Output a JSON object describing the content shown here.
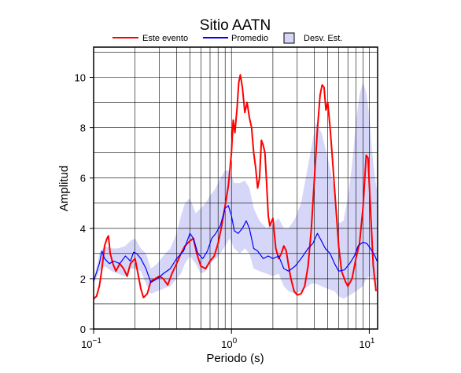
{
  "chart_data": {
    "type": "line",
    "title": "Sitio AATN",
    "xlabel": "Periodo (s)",
    "ylabel": "Amplitud",
    "xscale": "log",
    "xlim": [
      0.1,
      11.5
    ],
    "ylim": [
      0,
      11.2
    ],
    "grid": true,
    "legend_placement": "top",
    "x_ticks": [
      {
        "value": 0.1,
        "base": "10",
        "exp": "−1"
      },
      {
        "value": 1,
        "base": "10",
        "exp": "0"
      },
      {
        "value": 10,
        "base": "10",
        "exp": "1"
      }
    ],
    "y_ticks": [
      0,
      2,
      4,
      6,
      8,
      10
    ],
    "legend": [
      {
        "label": "Este evento",
        "color": "#ff0000",
        "kind": "line"
      },
      {
        "label": "Promedio",
        "color": "#0000ff",
        "kind": "line"
      },
      {
        "label": "Desv. Est.",
        "color": "#d6d6f8",
        "kind": "box"
      }
    ],
    "series": [
      {
        "name": "Este evento",
        "color": "#ff0000",
        "points": [
          [
            0.1,
            1.2
          ],
          [
            0.105,
            1.3
          ],
          [
            0.11,
            1.7
          ],
          [
            0.115,
            2.4
          ],
          [
            0.12,
            3.3
          ],
          [
            0.125,
            3.6
          ],
          [
            0.128,
            3.7
          ],
          [
            0.132,
            3.0
          ],
          [
            0.138,
            2.6
          ],
          [
            0.145,
            2.3
          ],
          [
            0.155,
            2.6
          ],
          [
            0.165,
            2.4
          ],
          [
            0.175,
            2.1
          ],
          [
            0.185,
            2.6
          ],
          [
            0.2,
            2.8
          ],
          [
            0.21,
            2.2
          ],
          [
            0.22,
            1.6
          ],
          [
            0.23,
            1.25
          ],
          [
            0.245,
            1.4
          ],
          [
            0.26,
            1.9
          ],
          [
            0.28,
            2.0
          ],
          [
            0.3,
            2.1
          ],
          [
            0.32,
            2.0
          ],
          [
            0.345,
            1.75
          ],
          [
            0.37,
            2.2
          ],
          [
            0.4,
            2.6
          ],
          [
            0.43,
            3.0
          ],
          [
            0.46,
            3.3
          ],
          [
            0.5,
            3.5
          ],
          [
            0.53,
            3.6
          ],
          [
            0.56,
            3.0
          ],
          [
            0.6,
            2.5
          ],
          [
            0.65,
            2.4
          ],
          [
            0.7,
            2.7
          ],
          [
            0.75,
            2.9
          ],
          [
            0.8,
            3.4
          ],
          [
            0.85,
            4.1
          ],
          [
            0.9,
            4.9
          ],
          [
            0.95,
            5.7
          ],
          [
            1.0,
            7.0
          ],
          [
            1.03,
            8.3
          ],
          [
            1.06,
            7.8
          ],
          [
            1.1,
            8.8
          ],
          [
            1.13,
            9.8
          ],
          [
            1.16,
            10.1
          ],
          [
            1.2,
            9.6
          ],
          [
            1.25,
            8.6
          ],
          [
            1.3,
            9.0
          ],
          [
            1.35,
            8.4
          ],
          [
            1.4,
            8.0
          ],
          [
            1.45,
            7.0
          ],
          [
            1.5,
            6.4
          ],
          [
            1.55,
            5.6
          ],
          [
            1.6,
            6.0
          ],
          [
            1.65,
            7.5
          ],
          [
            1.7,
            7.3
          ],
          [
            1.75,
            7.0
          ],
          [
            1.8,
            5.8
          ],
          [
            1.85,
            4.5
          ],
          [
            1.9,
            4.1
          ],
          [
            2.0,
            4.4
          ],
          [
            2.1,
            3.2
          ],
          [
            2.2,
            2.8
          ],
          [
            2.3,
            3.0
          ],
          [
            2.4,
            3.3
          ],
          [
            2.5,
            3.1
          ],
          [
            2.6,
            2.5
          ],
          [
            2.7,
            2.0
          ],
          [
            2.85,
            1.5
          ],
          [
            3.0,
            1.35
          ],
          [
            3.2,
            1.4
          ],
          [
            3.4,
            1.7
          ],
          [
            3.6,
            2.5
          ],
          [
            3.8,
            4.0
          ],
          [
            4.0,
            6.0
          ],
          [
            4.2,
            7.9
          ],
          [
            4.4,
            9.3
          ],
          [
            4.55,
            9.7
          ],
          [
            4.7,
            9.6
          ],
          [
            4.85,
            8.7
          ],
          [
            5.0,
            9.0
          ],
          [
            5.2,
            8.0
          ],
          [
            5.4,
            6.8
          ],
          [
            5.7,
            5.0
          ],
          [
            6.0,
            3.3
          ],
          [
            6.3,
            2.3
          ],
          [
            6.7,
            1.9
          ],
          [
            7.0,
            1.7
          ],
          [
            7.5,
            2.0
          ],
          [
            8.0,
            2.8
          ],
          [
            8.5,
            3.4
          ],
          [
            9.0,
            4.8
          ],
          [
            9.5,
            6.9
          ],
          [
            9.8,
            6.8
          ],
          [
            10.2,
            4.8
          ],
          [
            10.7,
            2.5
          ],
          [
            11.2,
            1.5
          ]
        ]
      },
      {
        "name": "Promedio",
        "color": "#0000ff",
        "points": [
          [
            0.1,
            1.9
          ],
          [
            0.11,
            2.6
          ],
          [
            0.115,
            3.1
          ],
          [
            0.12,
            2.8
          ],
          [
            0.13,
            2.6
          ],
          [
            0.14,
            2.7
          ],
          [
            0.155,
            2.6
          ],
          [
            0.17,
            2.9
          ],
          [
            0.185,
            2.7
          ],
          [
            0.195,
            3.05
          ],
          [
            0.205,
            3.0
          ],
          [
            0.22,
            2.8
          ],
          [
            0.24,
            2.4
          ],
          [
            0.26,
            1.85
          ],
          [
            0.29,
            2.0
          ],
          [
            0.32,
            2.2
          ],
          [
            0.36,
            2.4
          ],
          [
            0.4,
            2.8
          ],
          [
            0.45,
            3.1
          ],
          [
            0.5,
            3.8
          ],
          [
            0.53,
            3.6
          ],
          [
            0.57,
            3.0
          ],
          [
            0.62,
            2.8
          ],
          [
            0.67,
            3.1
          ],
          [
            0.72,
            3.6
          ],
          [
            0.77,
            3.8
          ],
          [
            0.83,
            4.1
          ],
          [
            0.9,
            4.8
          ],
          [
            0.95,
            4.9
          ],
          [
            1.0,
            4.5
          ],
          [
            1.05,
            3.9
          ],
          [
            1.12,
            3.8
          ],
          [
            1.2,
            4.0
          ],
          [
            1.28,
            4.3
          ],
          [
            1.35,
            4.0
          ],
          [
            1.45,
            3.2
          ],
          [
            1.55,
            3.1
          ],
          [
            1.7,
            2.8
          ],
          [
            1.85,
            2.9
          ],
          [
            2.0,
            2.8
          ],
          [
            2.2,
            2.9
          ],
          [
            2.4,
            2.4
          ],
          [
            2.6,
            2.3
          ],
          [
            2.9,
            2.5
          ],
          [
            3.2,
            2.8
          ],
          [
            3.6,
            3.2
          ],
          [
            3.9,
            3.4
          ],
          [
            4.2,
            3.8
          ],
          [
            4.5,
            3.5
          ],
          [
            4.8,
            3.2
          ],
          [
            5.2,
            3.0
          ],
          [
            5.6,
            2.6
          ],
          [
            6.0,
            2.3
          ],
          [
            6.6,
            2.35
          ],
          [
            7.2,
            2.6
          ],
          [
            7.8,
            2.9
          ],
          [
            8.3,
            3.3
          ],
          [
            9.0,
            3.45
          ],
          [
            9.6,
            3.4
          ],
          [
            10.2,
            3.2
          ],
          [
            11.0,
            2.9
          ],
          [
            11.4,
            2.7
          ]
        ]
      }
    ],
    "band": {
      "name": "Desv. Est.",
      "color": "#d6d6f8",
      "points": [
        [
          0.1,
          1.8,
          1.9
        ],
        [
          0.11,
          2.3,
          3.0
        ],
        [
          0.12,
          2.5,
          3.3
        ],
        [
          0.135,
          2.3,
          3.2
        ],
        [
          0.15,
          2.2,
          3.2
        ],
        [
          0.17,
          2.1,
          3.3
        ],
        [
          0.185,
          2.4,
          3.5
        ],
        [
          0.2,
          2.4,
          3.6
        ],
        [
          0.22,
          2.3,
          3.2
        ],
        [
          0.24,
          1.8,
          3.0
        ],
        [
          0.26,
          1.4,
          2.4
        ],
        [
          0.29,
          1.5,
          2.6
        ],
        [
          0.32,
          1.6,
          2.9
        ],
        [
          0.36,
          1.7,
          3.2
        ],
        [
          0.4,
          2.0,
          3.8
        ],
        [
          0.43,
          2.2,
          4.5
        ],
        [
          0.46,
          2.6,
          5.0
        ],
        [
          0.5,
          2.9,
          5.2
        ],
        [
          0.55,
          2.6,
          4.6
        ],
        [
          0.6,
          2.2,
          4.8
        ],
        [
          0.65,
          2.3,
          5.0
        ],
        [
          0.7,
          2.6,
          5.3
        ],
        [
          0.77,
          2.8,
          5.6
        ],
        [
          0.83,
          3.0,
          6.0
        ],
        [
          0.9,
          3.3,
          6.3
        ],
        [
          0.97,
          3.6,
          6.3
        ],
        [
          1.05,
          3.2,
          5.8
        ],
        [
          1.15,
          3.0,
          5.8
        ],
        [
          1.25,
          3.2,
          5.9
        ],
        [
          1.35,
          3.0,
          5.6
        ],
        [
          1.45,
          2.4,
          4.8
        ],
        [
          1.6,
          2.3,
          4.3
        ],
        [
          1.8,
          2.2,
          4.0
        ],
        [
          2.0,
          2.1,
          4.2
        ],
        [
          2.2,
          2.2,
          4.4
        ],
        [
          2.4,
          1.7,
          4.0
        ],
        [
          2.6,
          1.5,
          4.0
        ],
        [
          2.9,
          1.4,
          4.4
        ],
        [
          3.2,
          1.5,
          5.0
        ],
        [
          3.6,
          1.7,
          6.5
        ],
        [
          3.8,
          1.8,
          7.2
        ],
        [
          4.1,
          1.8,
          8.2
        ],
        [
          4.5,
          1.7,
          7.8
        ],
        [
          5.0,
          1.6,
          6.8
        ],
        [
          5.6,
          1.5,
          5.5
        ],
        [
          6.0,
          1.3,
          4.2
        ],
        [
          6.5,
          1.2,
          4.3
        ],
        [
          7.0,
          1.3,
          5.2
        ],
        [
          7.5,
          1.4,
          6.5
        ],
        [
          8.0,
          1.5,
          8.2
        ],
        [
          8.5,
          1.6,
          9.3
        ],
        [
          9.0,
          1.7,
          9.8
        ],
        [
          9.5,
          2.0,
          9.4
        ],
        [
          10.0,
          2.1,
          8.5
        ],
        [
          10.5,
          2.0,
          7.0
        ],
        [
          11.0,
          1.8,
          6.0
        ],
        [
          11.4,
          1.6,
          5.5
        ]
      ]
    }
  }
}
